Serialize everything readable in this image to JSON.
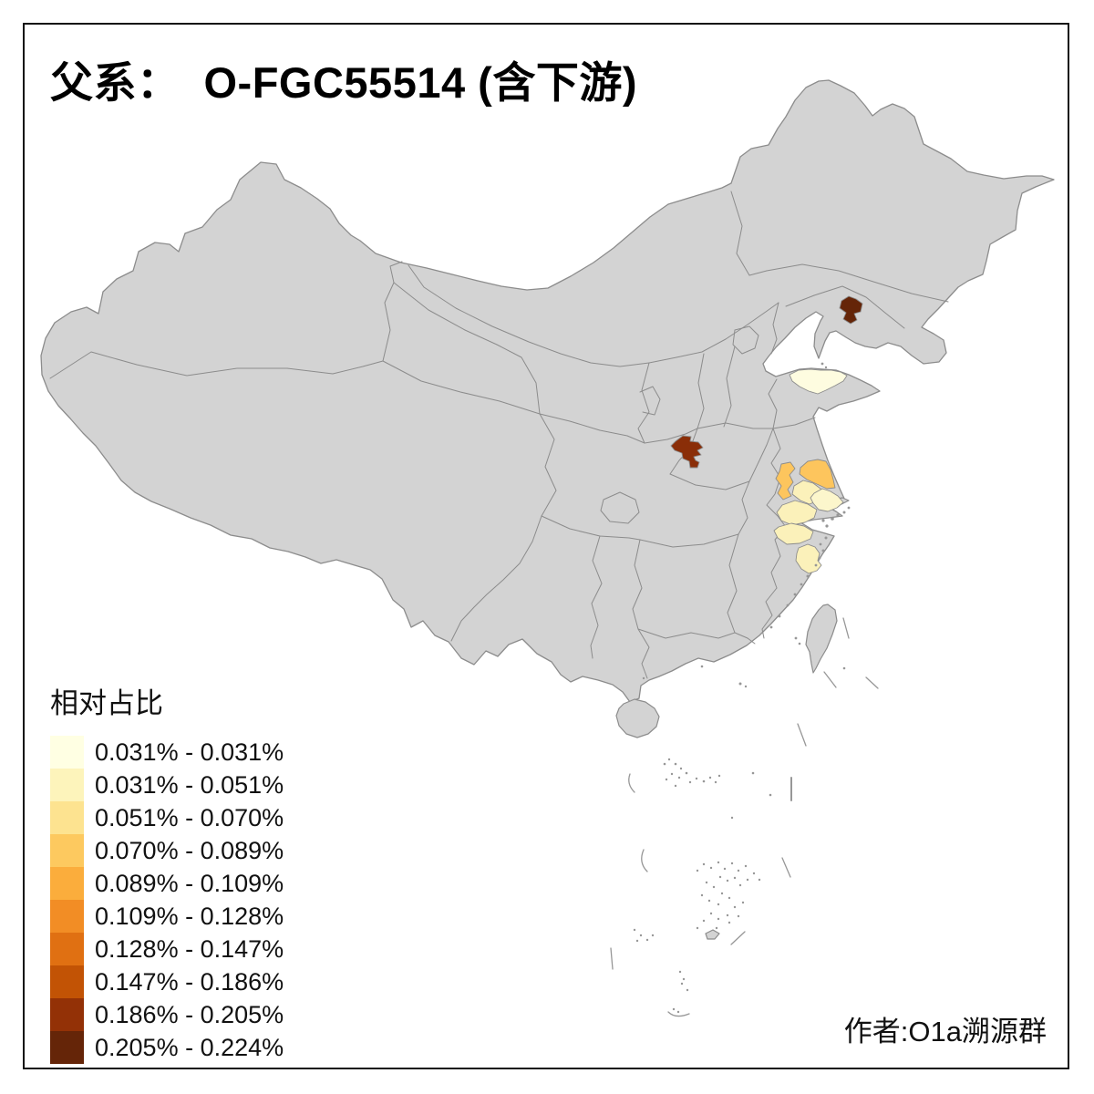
{
  "title": {
    "prefix": "父系：",
    "name": "O-FGC55514 (含下游)"
  },
  "legend": {
    "title": "相对占比",
    "items": [
      {
        "label": "0.031% - 0.031%",
        "color": "#FFFFE3"
      },
      {
        "label": "0.031% - 0.051%",
        "color": "#FDF4BB"
      },
      {
        "label": "0.051% - 0.070%",
        "color": "#FDE390"
      },
      {
        "label": "0.070% - 0.089%",
        "color": "#FDC95F"
      },
      {
        "label": "0.089% - 0.109%",
        "color": "#FBAD3C"
      },
      {
        "label": "0.109% - 0.128%",
        "color": "#F28D25"
      },
      {
        "label": "0.128% - 0.147%",
        "color": "#E07012"
      },
      {
        "label": "0.147% - 0.186%",
        "color": "#C25305"
      },
      {
        "label": "0.186% - 0.205%",
        "color": "#933106"
      },
      {
        "label": "0.205% - 0.224%",
        "color": "#652508"
      }
    ]
  },
  "attribution": "作者:O1a溯源群",
  "map": {
    "colors": {
      "land": "#D3D3D3",
      "border": "#8C8C8C",
      "frame": "#111111",
      "background": "#FFFFFF",
      "island": "#979797"
    },
    "regions": {
      "liaoning_east": {
        "fill": "#652508",
        "range": "0.205% - 0.224%"
      },
      "henan_central": {
        "fill": "#8A2E08",
        "range": "0.186% - 0.205%"
      },
      "shandong_peninsula": {
        "fill": "#FEFCE0",
        "range": "0.031% - 0.031%"
      },
      "jiangsu_west": {
        "fill": "#FDC55D",
        "range": "0.070% - 0.089%"
      },
      "jiangsu_coast_north": {
        "fill": "#FDC55D",
        "range": "0.070% - 0.089%"
      },
      "jiangsu_central": {
        "fill": "#FBF1BA",
        "range": "0.031% - 0.051%"
      },
      "jiangsu_coast_east": {
        "fill": "#FCF6CC",
        "range": "0.031% - 0.051%"
      },
      "jiangsu_south": {
        "fill": "#FBF1BA",
        "range": "0.031% - 0.051%"
      },
      "zhejiang_north": {
        "fill": "#FBF1BA",
        "range": "0.031% - 0.051%"
      },
      "zhejiang_coast": {
        "fill": "#FBF1BA",
        "range": "0.031% - 0.051%"
      }
    }
  },
  "chart_data": {
    "type": "choropleth",
    "title": "父系： O-FGC55514 (含下游)",
    "legend_title": "相对占比",
    "legend_position": "bottom-left",
    "bins": [
      "0.031% - 0.031%",
      "0.031% - 0.051%",
      "0.051% - 0.070%",
      "0.070% - 0.089%",
      "0.089% - 0.109%",
      "0.109% - 0.128%",
      "0.128% - 0.147%",
      "0.147% - 0.186%",
      "0.186% - 0.205%",
      "0.205% - 0.224%"
    ],
    "regions": [
      {
        "area": "liaoning_east",
        "range": "0.205% - 0.224%"
      },
      {
        "area": "henan_central",
        "range": "0.186% - 0.205%"
      },
      {
        "area": "shandong_peninsula",
        "range": "0.031% - 0.031%"
      },
      {
        "area": "jiangsu_west",
        "range": "0.070% - 0.089%"
      },
      {
        "area": "jiangsu_coast_north",
        "range": "0.070% - 0.089%"
      },
      {
        "area": "jiangsu_central",
        "range": "0.031% - 0.051%"
      },
      {
        "area": "jiangsu_coast_east",
        "range": "0.031% - 0.051%"
      },
      {
        "area": "jiangsu_south",
        "range": "0.031% - 0.051%"
      },
      {
        "area": "zhejiang_north",
        "range": "0.031% - 0.051%"
      },
      {
        "area": "zhejiang_coast",
        "range": "0.031% - 0.051%"
      }
    ]
  }
}
